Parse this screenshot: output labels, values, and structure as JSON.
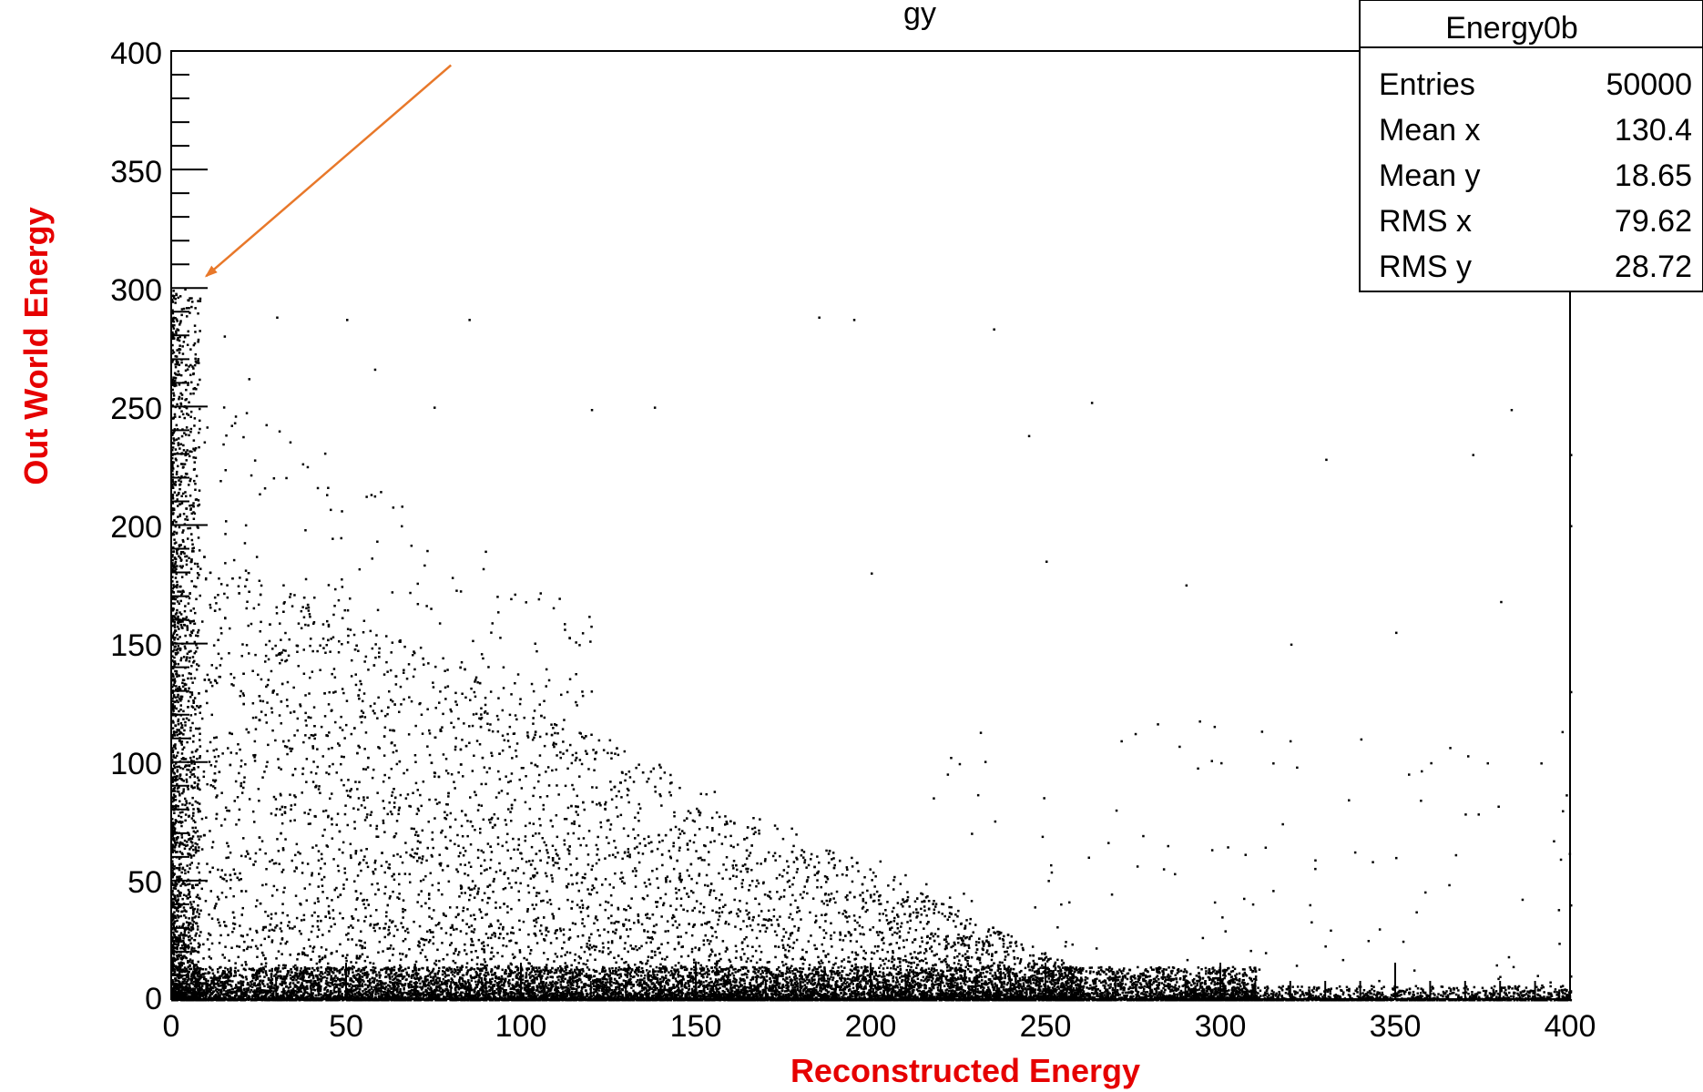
{
  "chart_data": {
    "type": "scatter",
    "title_fragment": "gy",
    "xlabel": "Reconstructed Energy",
    "ylabel": "Out World Energy",
    "xlim": [
      0,
      400
    ],
    "ylim": [
      0,
      400
    ],
    "x_ticks": [
      "0",
      "50",
      "100",
      "150",
      "200",
      "250",
      "300",
      "350",
      "400"
    ],
    "y_ticks": [
      "0",
      "50",
      "100",
      "150",
      "200",
      "250",
      "300",
      "350",
      "400"
    ],
    "grid": false,
    "legend": "none",
    "stats_box": {
      "title": "Energy0b",
      "placement": "top-right",
      "rows": [
        {
          "label": "Entries",
          "value": "50000"
        },
        {
          "label": "Mean x",
          "value": "130.4"
        },
        {
          "label": "Mean y",
          "value": "18.65"
        },
        {
          "label": "RMS x",
          "value": "79.62"
        },
        {
          "label": "RMS y",
          "value": "28.72"
        }
      ]
    },
    "annotation_arrow": {
      "color": "#e8782a",
      "from": [
        80,
        394
      ],
      "to": [
        10,
        305
      ]
    },
    "series": [
      {
        "values_description_points": [
          [
            5,
            290
          ],
          [
            8,
            296
          ],
          [
            15,
            280
          ],
          [
            22,
            262
          ],
          [
            30,
            288
          ],
          [
            50,
            287
          ],
          [
            85,
            287
          ],
          [
            185,
            288
          ],
          [
            195,
            287
          ],
          [
            235,
            283
          ],
          [
            263,
            252
          ],
          [
            58,
            266
          ],
          [
            75,
            250
          ],
          [
            120,
            249
          ],
          [
            138,
            250
          ],
          [
            245,
            238
          ],
          [
            330,
            228
          ],
          [
            372,
            230
          ],
          [
            383,
            249
          ],
          [
            400,
            230
          ],
          [
            380,
            168
          ],
          [
            400,
            200
          ],
          [
            400,
            130
          ],
          [
            400,
            40
          ],
          [
            400,
            10
          ],
          [
            340,
            110
          ],
          [
            300,
            100
          ],
          [
            270,
            80
          ],
          [
            350,
            60
          ],
          [
            320,
            150
          ],
          [
            350,
            155
          ],
          [
            290,
            175
          ],
          [
            250,
            185
          ],
          [
            200,
            180
          ],
          [
            360,
            100
          ]
        ],
        "density_regions": [
          {
            "x": [
              0,
              400
            ],
            "y": [
              0,
              15
            ],
            "weight": 0.55
          },
          {
            "x": [
              0,
              10
            ],
            "y": [
              0,
              300
            ],
            "weight": 0.1
          },
          {
            "x": [
              0,
              250
            ],
            "y": [
              0,
              160
            ],
            "weight": 0.3
          },
          {
            "x": [
              200,
              400
            ],
            "y": [
              0,
              80
            ],
            "weight": 0.05
          }
        ]
      }
    ]
  }
}
